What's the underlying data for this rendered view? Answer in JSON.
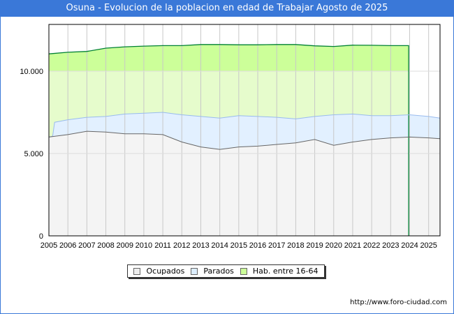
{
  "chart_data": {
    "type": "area",
    "title": "Osuna - Evolucion de la poblacion en edad de Trabajar Agosto de 2025",
    "xlabel": "",
    "ylabel": "",
    "ylim": [
      0,
      12900
    ],
    "xlim": [
      2005,
      2025.6
    ],
    "yticks": [
      {
        "v": 0,
        "label": "0"
      },
      {
        "v": 5000,
        "label": "5.000"
      },
      {
        "v": 10000,
        "label": "10.000"
      }
    ],
    "xticks": [
      "2005",
      "2006",
      "2007",
      "2008",
      "2009",
      "2010",
      "2011",
      "2012",
      "2013",
      "2014",
      "2015",
      "2016",
      "2017",
      "2018",
      "2019",
      "2020",
      "2021",
      "2022",
      "2023",
      "2024",
      "2025"
    ],
    "grid": true,
    "legend_position": "bottom",
    "series": [
      {
        "name": "Hab. entre 16-64",
        "color": "#ccff99",
        "line": "#008033",
        "x": [
          2005,
          2006,
          2007,
          2008,
          2009,
          2010,
          2011,
          2012,
          2013,
          2014,
          2015,
          2016,
          2017,
          2018,
          2019,
          2020,
          2021,
          2022,
          2023,
          2023.95
        ],
        "values": [
          11050,
          11150,
          11200,
          11400,
          11480,
          11520,
          11550,
          11550,
          11620,
          11620,
          11600,
          11600,
          11620,
          11620,
          11540,
          11500,
          11580,
          11570,
          11550,
          11550
        ]
      },
      {
        "name": "Parados",
        "color": "#ddeeff",
        "line": "#99bbee",
        "x": [
          2005,
          2005.2,
          2005.3,
          2006,
          2007,
          2008,
          2009,
          2010,
          2011,
          2012,
          2013,
          2014,
          2015,
          2016,
          2017,
          2018,
          2019,
          2020,
          2021,
          2022,
          2023,
          2024,
          2025,
          2025.6
        ],
        "values": [
          6000,
          6050,
          6900,
          7050,
          7200,
          7250,
          7400,
          7450,
          7500,
          7350,
          7250,
          7150,
          7300,
          7250,
          7200,
          7100,
          7250,
          7350,
          7400,
          7300,
          7300,
          7350,
          7250,
          7150
        ]
      },
      {
        "name": "Ocupados",
        "color": "#f4f4f4",
        "line": "#666666",
        "x": [
          2005,
          2006,
          2007,
          2008,
          2009,
          2010,
          2011,
          2012,
          2013,
          2014,
          2015,
          2016,
          2017,
          2018,
          2019,
          2020,
          2021,
          2022,
          2023,
          2024,
          2025,
          2025.6
        ],
        "values": [
          6000,
          6150,
          6350,
          6300,
          6200,
          6200,
          6150,
          5700,
          5400,
          5250,
          5400,
          5450,
          5550,
          5650,
          5850,
          5500,
          5700,
          5850,
          5950,
          6000,
          5950,
          5900
        ]
      }
    ]
  },
  "legend": [
    "Ocupados",
    "Parados",
    "Hab. entre 16-64"
  ],
  "footer_url": "http://www.foro-ciudad.com"
}
